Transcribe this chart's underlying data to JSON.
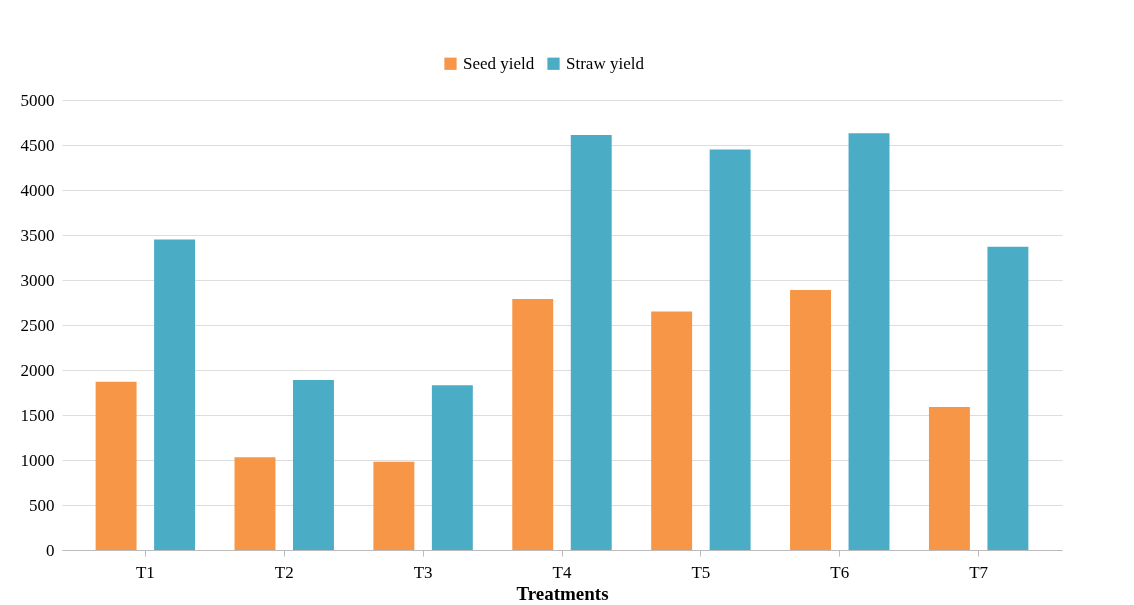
{
  "chart_data": {
    "type": "bar",
    "xlabel": "Treatments",
    "categories": [
      "T1",
      "T2",
      "T3",
      "T4",
      "T5",
      "T6",
      "T7"
    ],
    "series": [
      {
        "name": "Seed yield",
        "color": "#f79646",
        "values": [
          1870,
          1030,
          980,
          2790,
          2650,
          2890,
          1590
        ]
      },
      {
        "name": "Straw yield",
        "color": "#4bacc6",
        "values": [
          3450,
          1890,
          1830,
          4610,
          4450,
          4630,
          3370
        ]
      }
    ],
    "ylim": [
      0,
      5000
    ],
    "yticks": [
      0,
      500,
      1000,
      1500,
      2000,
      2500,
      3000,
      3500,
      4000,
      4500,
      5000
    ],
    "grid": "y",
    "legend": "top"
  }
}
